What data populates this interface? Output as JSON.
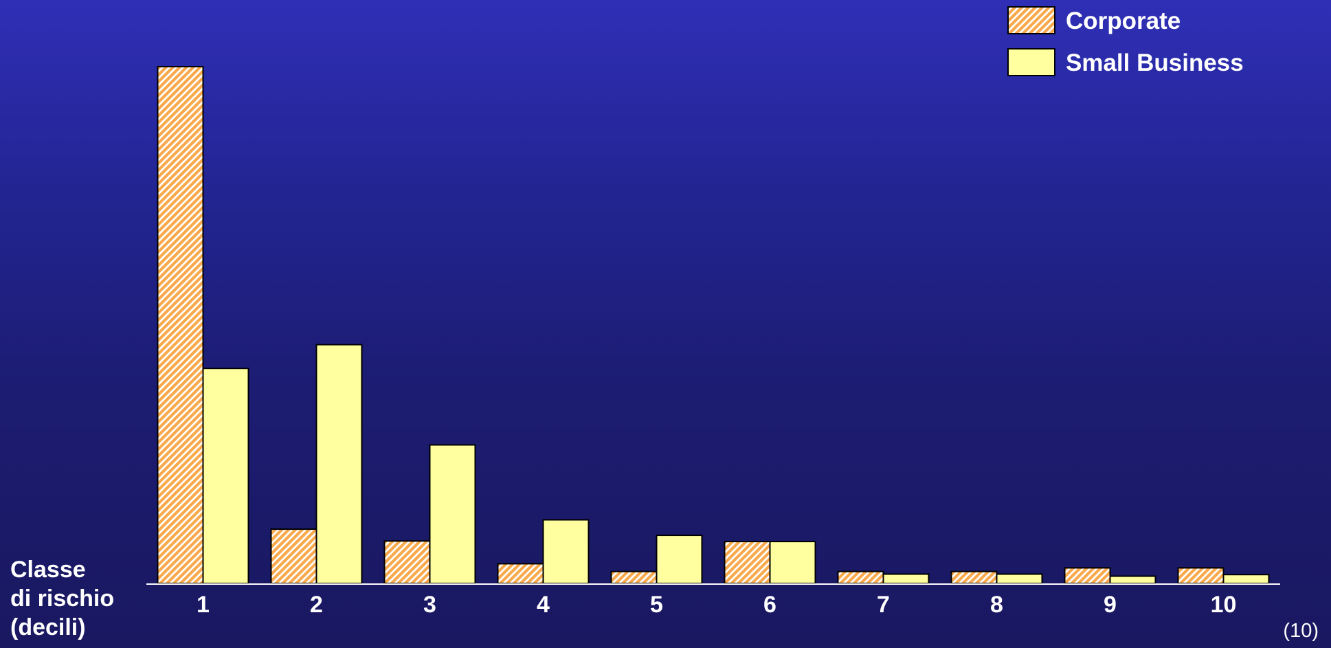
{
  "chart_data": {
    "type": "bar",
    "categories": [
      "1",
      "2",
      "3",
      "4",
      "5",
      "6",
      "7",
      "8",
      "9",
      "10"
    ],
    "series": [
      {
        "name": "Corporate",
        "values": [
          100,
          10.5,
          8.2,
          3.8,
          2.3,
          8.1,
          2.3,
          2.3,
          3.0,
          3.0
        ],
        "pattern": "hatched",
        "color": "#f9a94b"
      },
      {
        "name": "Small Business",
        "values": [
          41.6,
          46.2,
          26.8,
          12.3,
          9.3,
          8.1,
          1.8,
          1.8,
          1.4,
          1.7
        ],
        "pattern": "solid",
        "color": "#ffffa0"
      }
    ],
    "ylim": [
      0,
      100
    ],
    "grid": false,
    "legend_position": "top-right",
    "xlabel_lines": [
      "Classe",
      "di rischio",
      "(decili)"
    ],
    "ylabel": "",
    "title": ""
  },
  "footer": {
    "page_number": "(10)"
  },
  "colors": {
    "background_top": "#2f2fb6",
    "background_bottom": "#1a1860",
    "bar_outline": "#000000",
    "axis": "#ffffff"
  }
}
